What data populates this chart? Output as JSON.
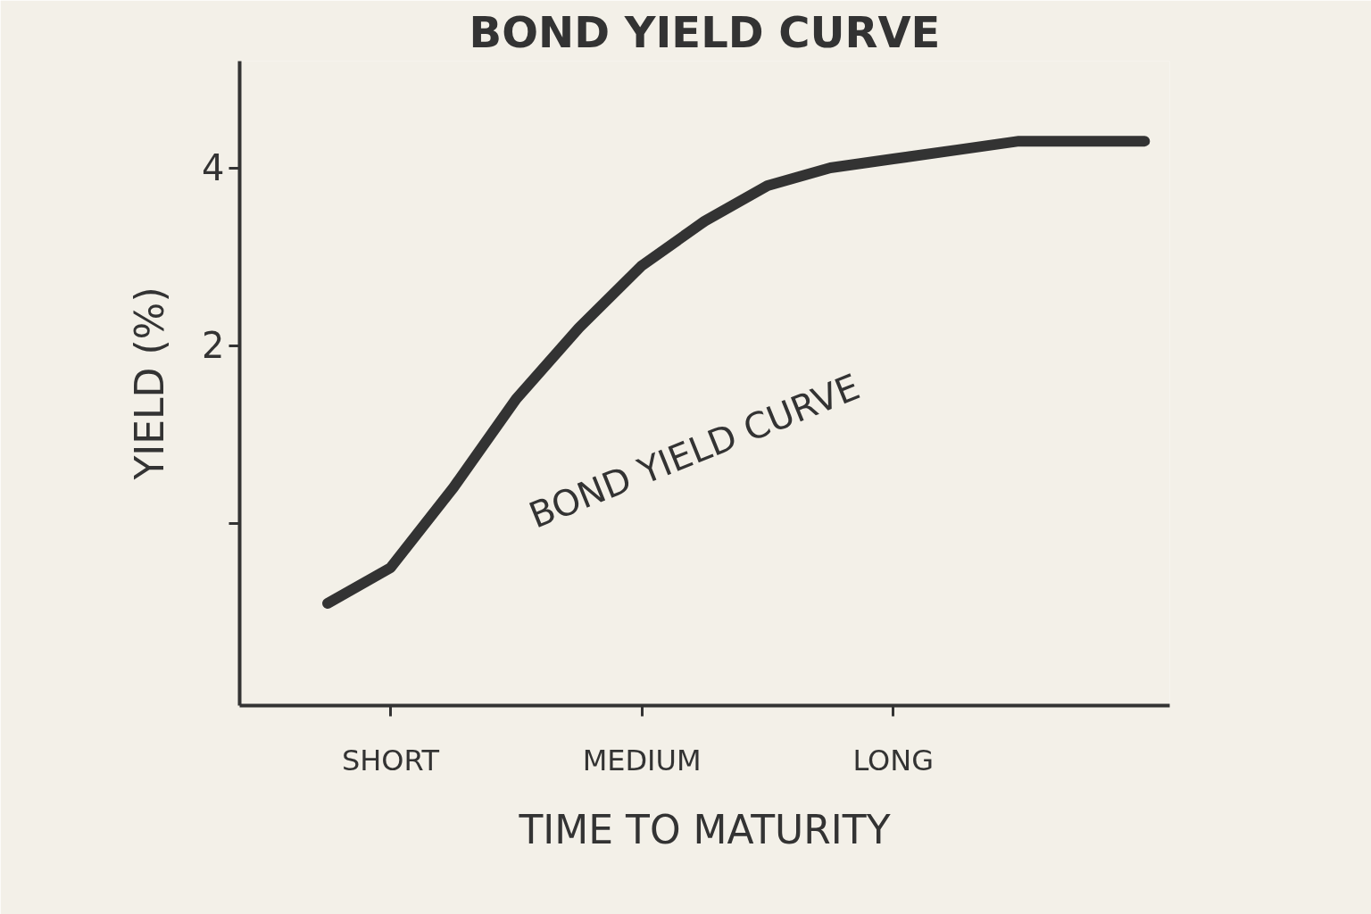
{
  "chart_data": {
    "type": "line",
    "title": "BOND YIELD CURVE",
    "xlabel": "TIME TO MATURITY",
    "ylabel": "YIELD (%)",
    "categories": [
      null,
      "SHORT",
      null,
      null,
      null,
      "MEDIUM",
      null,
      null,
      null,
      "LONG",
      null,
      null,
      null,
      null
    ],
    "series": [
      {
        "color": "#333333",
        "values": [
          -0.9,
          -0.5,
          0.4,
          1.4,
          2.2,
          2.9,
          3.4,
          3.8,
          4.0,
          4.1,
          4.2,
          4.3,
          4.3,
          4.3
        ]
      }
    ],
    "ylim": [
      -2.05,
      5.2
    ],
    "yticks": [
      {
        "value": 0,
        "label": null
      },
      2,
      4
    ],
    "annotations": [
      "BOND YIELD CURVE"
    ],
    "grid": false,
    "marker": "none",
    "line_style": "solid"
  }
}
